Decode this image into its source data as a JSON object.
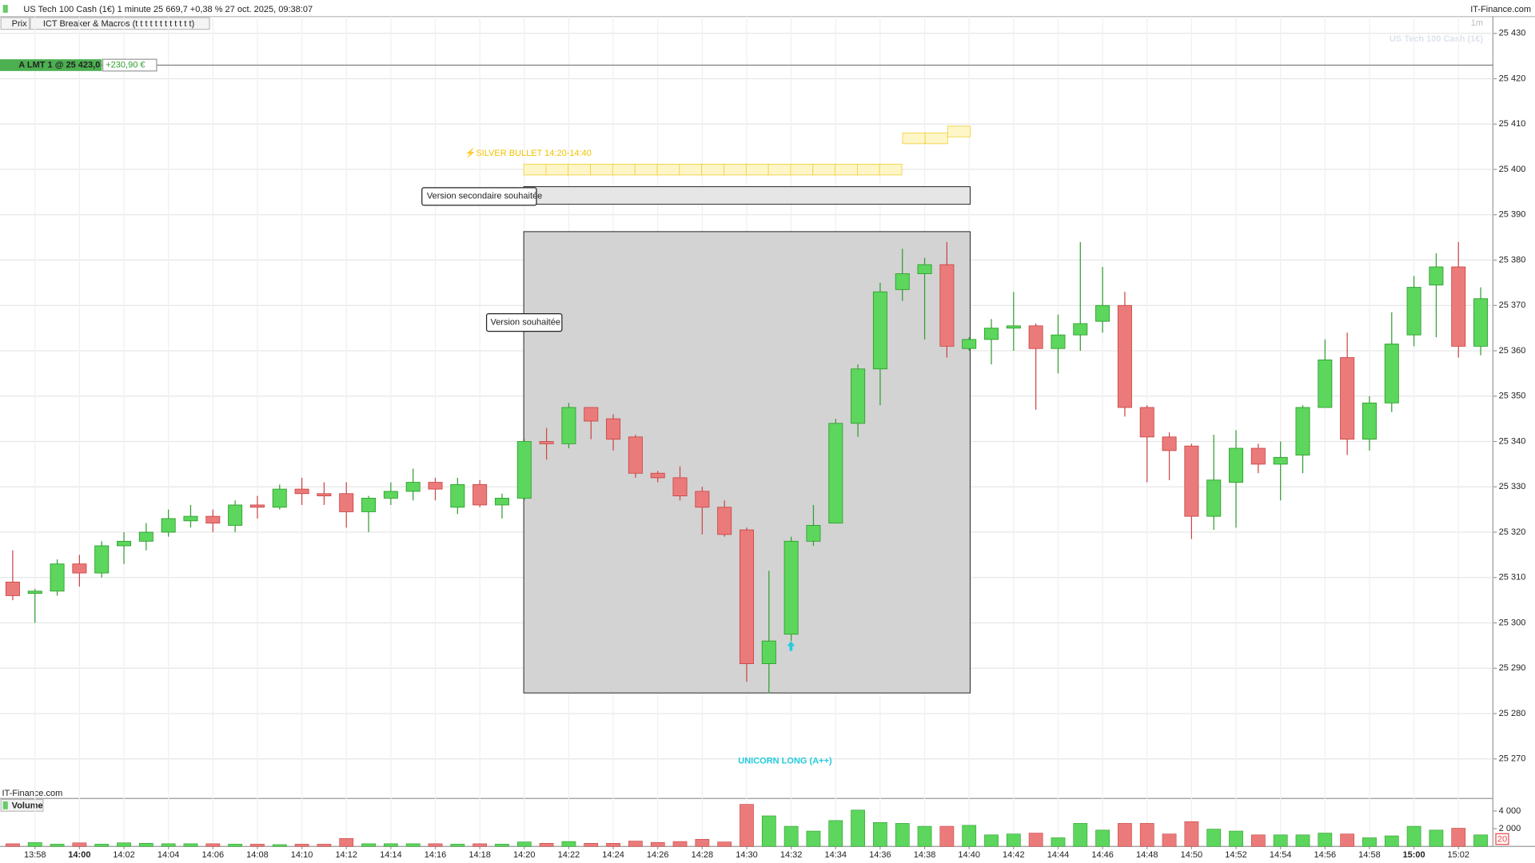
{
  "header": {
    "title": "US Tech 100 Cash (1€) 1 minute 25 669,7 +0,38 % 27 oct. 2025, 09:38:07",
    "brand": "IT-Finance.com"
  },
  "indicators": {
    "price": "Prix",
    "macro": "ICT Breaker & Macros (t t t t t t t t t t t t)"
  },
  "chart_data": {
    "type": "candlestick",
    "watermark": "US Tech 100 Cash (1€)",
    "interval": "1m",
    "source": "IT-Finance.com",
    "order": {
      "label": "A LMT 1 @ 25 423,0",
      "price": 25423,
      "pnl": "+230,90 €"
    },
    "annotations": {
      "silver_bullet": "⚡SILVER BULLET 14:20-14:40",
      "secondary": "Version secondaire souhaitée",
      "wanted": "Version souhaitée",
      "unicorn": "UNICORN LONG (A++)"
    },
    "categories": [
      null,
      "13:58",
      null,
      "14:00",
      null,
      "14:02",
      null,
      "14:04",
      null,
      "14:06",
      null,
      "14:08",
      null,
      "14:10",
      null,
      "14:12",
      null,
      "14:14",
      null,
      "14:16",
      null,
      "14:18",
      null,
      "14:20",
      null,
      "14:22",
      null,
      "14:24",
      null,
      "14:26",
      null,
      "14:28",
      null,
      "14:30",
      null,
      "14:32",
      null,
      "14:34",
      null,
      "14:36",
      null,
      "14:38",
      null,
      "14:40",
      null,
      "14:42",
      null,
      "14:44",
      null,
      "14:46",
      null,
      "14:48",
      null,
      "14:50",
      null,
      "14:52",
      null,
      "14:54",
      null,
      "14:56",
      null,
      "14:58",
      null,
      "15:00",
      null,
      "15:02",
      null
    ],
    "open": [
      25309,
      25306.5,
      25307,
      25313,
      25311,
      25317,
      25318,
      25320,
      25322.5,
      25323.5,
      25321.5,
      25326,
      25325.5,
      25329.5,
      25328.5,
      25328.5,
      25324.5,
      25327.5,
      25329,
      25331,
      25325.5,
      25330.5,
      25326,
      25327.5,
      25340,
      25339.5,
      25347.5,
      25345,
      25341,
      25333,
      25332,
      25329,
      25325.5,
      25320.5,
      25291,
      25297.5,
      25318,
      25322,
      25344,
      25356,
      25373.5,
      25377,
      25379,
      25360.5,
      25362.5,
      25365,
      25365.5,
      25360.5,
      25363.5,
      25366.5,
      25370,
      25347.5,
      25341,
      25339,
      25323.5,
      25331,
      25338.5,
      25335,
      25337,
      25347.5,
      25358.5,
      25340.5,
      25348.5,
      25363.5,
      25374.5,
      25378.5,
      25361
    ],
    "high": [
      25316,
      25307.5,
      25314,
      25315,
      25318,
      25320,
      25322,
      25325,
      25326,
      25325,
      25327,
      25328,
      25330.5,
      25332,
      25331,
      25331,
      25328,
      25331,
      25334,
      25332,
      25332,
      25331.5,
      25328.5,
      25340.5,
      25343,
      25348.5,
      25347.5,
      25346,
      25341.5,
      25333.5,
      25334.5,
      25330,
      25327,
      25321,
      25311.5,
      25319,
      25326,
      25345,
      25357,
      25375,
      25382.5,
      25380.5,
      25384,
      25363,
      25367,
      25373,
      25366,
      25368,
      25384,
      25378.5,
      25373,
      25348,
      25342,
      25339.5,
      25341.5,
      25342.5,
      25339.5,
      25340,
      25348,
      25362.5,
      25364,
      25350,
      25368.5,
      25376.5,
      25381.5,
      25384,
      25374
    ],
    "low": [
      25305,
      25300,
      25306,
      25308,
      25310,
      25313,
      25316,
      25319,
      25321,
      25320,
      25320,
      25323,
      25325,
      25326,
      25326,
      25321,
      25320,
      25326,
      25327,
      25327,
      25324,
      25325.5,
      25323,
      25327,
      25336,
      25338.5,
      25340.5,
      25338,
      25332,
      25331,
      25327,
      25319.5,
      25319,
      25287,
      25284.5,
      25296,
      25317,
      25322,
      25341,
      25348,
      25371,
      25362.5,
      25358.5,
      25360,
      25357,
      25360,
      25347,
      25355,
      25360,
      25364,
      25345.5,
      25331,
      25331.5,
      25318.5,
      25320.5,
      25321,
      25333,
      25327,
      25333,
      25347.5,
      25337,
      25338,
      25346.5,
      25361,
      25363,
      25358.5,
      25359
    ],
    "close": [
      25306,
      25307,
      25313,
      25311,
      25317,
      25318,
      25320,
      25323,
      25323.5,
      25322,
      25326,
      25325.5,
      25329.5,
      25328.5,
      25328,
      25324.5,
      25327.5,
      25329,
      25331,
      25329.5,
      25330.5,
      25326,
      25327.5,
      25340,
      25339.5,
      25347.5,
      25344.5,
      25340.5,
      25333,
      25332,
      25328,
      25325.5,
      25319.5,
      25291,
      25296,
      25318,
      25321.5,
      25344,
      25356,
      25373,
      25377,
      25379,
      25361,
      25362.5,
      25365,
      25365.5,
      25360.5,
      25363.5,
      25366,
      25370,
      25347.5,
      25341,
      25338,
      25323.5,
      25331.5,
      25338.5,
      25335,
      25336.5,
      25347.5,
      25358,
      25340.5,
      25348.5,
      25361.5,
      25374,
      25378.5,
      25361,
      25371.5
    ],
    "up_color": "#5cd65c",
    "down_color": "#eb7b7b",
    "ylim": [
      25261.7,
      25433.7
    ],
    "yticks": [
      {
        "value": 25270,
        "label": "25 270"
      },
      {
        "value": 25280,
        "label": "25 280"
      },
      {
        "value": 25290,
        "label": "25 290"
      },
      {
        "value": 25300,
        "label": "25 300"
      },
      {
        "value": 25310,
        "label": "25 310"
      },
      {
        "value": 25320,
        "label": "25 320"
      },
      {
        "value": 25330,
        "label": "25 330"
      },
      {
        "value": 25340,
        "label": "25 340"
      },
      {
        "value": 25350,
        "label": "25 350"
      },
      {
        "value": 25360,
        "label": "25 360"
      },
      {
        "value": 25370,
        "label": "25 370"
      },
      {
        "value": 25380,
        "label": "25 380"
      },
      {
        "value": 25390,
        "label": "25 390"
      },
      {
        "value": 25400,
        "label": "25 400"
      },
      {
        "value": 25410,
        "label": "25 410"
      },
      {
        "value": 25420,
        "label": "25 420"
      },
      {
        "value": 25430,
        "label": "25 430"
      }
    ],
    "grid": true,
    "volume": {
      "title": "Volume",
      "period": 20,
      "values": [
        300,
        430,
        250,
        400,
        250,
        400,
        350,
        300,
        300,
        300,
        250,
        250,
        200,
        250,
        250,
        900,
        300,
        300,
        300,
        300,
        250,
        300,
        250,
        500,
        350,
        550,
        350,
        350,
        600,
        450,
        550,
        800,
        500,
        4750,
        3450,
        2270,
        1730,
        2920,
        4100,
        2700,
        2600,
        2270,
        2270,
        2380,
        1300,
        1400,
        1500,
        970,
        2600,
        1840,
        2600,
        2600,
        1400,
        2800,
        1950,
        1730,
        1300,
        1300,
        1300,
        1500,
        1400,
        970,
        1190,
        2270,
        1840,
        2050,
        1300
      ],
      "ylim": [
        0,
        5300
      ],
      "yticks": [
        {
          "value": 2000,
          "label": "2 000"
        },
        {
          "value": 4000,
          "label": "4 000"
        }
      ]
    }
  }
}
